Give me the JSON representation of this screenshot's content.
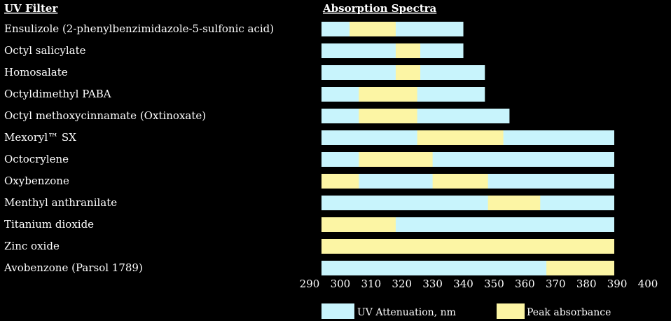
{
  "chart_data": {
    "type": "bar",
    "header_left": "UV Filter",
    "header_right": "Absorption Spectra",
    "x_ticks": [
      290,
      300,
      310,
      320,
      330,
      340,
      350,
      360,
      370,
      380,
      390,
      400
    ],
    "xlim": [
      290,
      400
    ],
    "colors": {
      "attenuation": "#c8f4fc",
      "peak": "#fcf5a4",
      "background": "#000000",
      "text": "#ffffff"
    },
    "legend": {
      "attenuation": "UV Attenuation, nm",
      "peak": "Peak absorbance",
      "placement": "bottom"
    },
    "rows": [
      {
        "label": "Ensulizole (2-phenylbenzimidazole-5-sulfonic acid)",
        "attenuation": [
          290,
          340
        ],
        "peak": [
          [
            303,
            318
          ]
        ]
      },
      {
        "label": "Octyl salicylate",
        "attenuation": [
          290,
          340
        ],
        "peak": [
          [
            318,
            326
          ]
        ]
      },
      {
        "label": "Homosalate",
        "attenuation": [
          290,
          347
        ],
        "peak": [
          [
            318,
            326
          ]
        ]
      },
      {
        "label": "Octyldimethyl PABA",
        "attenuation": [
          290,
          347
        ],
        "peak": [
          [
            306,
            325
          ]
        ]
      },
      {
        "label": "Octyl methoxycinnamate (Oxtinoxate)",
        "attenuation": [
          290,
          355
        ],
        "peak": [
          [
            306,
            325
          ]
        ]
      },
      {
        "label": "Mexoryl™ SX",
        "attenuation": [
          290,
          400
        ],
        "peak": [
          [
            325,
            353
          ]
        ]
      },
      {
        "label": "Octocrylene",
        "attenuation": [
          290,
          400
        ],
        "peak": [
          [
            306,
            330
          ]
        ]
      },
      {
        "label": "Oxybenzone",
        "attenuation": [
          290,
          400
        ],
        "peak": [
          [
            290,
            306
          ],
          [
            330,
            348
          ]
        ]
      },
      {
        "label": "Menthyl anthranilate",
        "attenuation": [
          290,
          400
        ],
        "peak": [
          [
            348,
            365
          ]
        ]
      },
      {
        "label": "Titanium dioxide",
        "attenuation": [
          290,
          400
        ],
        "peak": [
          [
            290,
            318
          ]
        ]
      },
      {
        "label": "Zinc oxide",
        "attenuation": [
          290,
          400
        ],
        "peak": [
          [
            290,
            400
          ]
        ]
      },
      {
        "label": "Avobenzone (Parsol 1789)",
        "attenuation": [
          290,
          400
        ],
        "peak": [
          [
            367,
            390
          ]
        ]
      }
    ]
  }
}
